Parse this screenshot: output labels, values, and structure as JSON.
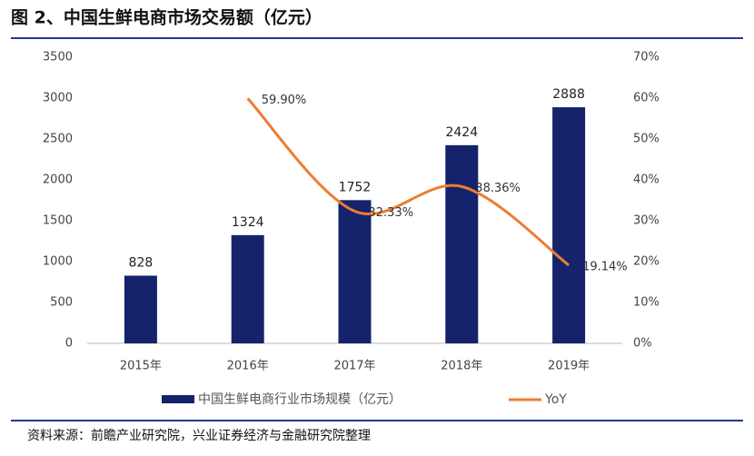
{
  "chart_data": {
    "type": "bar",
    "title": "图 2、中国生鲜电商市场交易额（亿元）",
    "source": "资料来源：前瞻产业研究院，兴业证券经济与金融研究院整理",
    "categories": [
      "2015年",
      "2016年",
      "2017年",
      "2018年",
      "2019年"
    ],
    "series": [
      {
        "name": "中国生鲜电商行业市场规模（亿元）",
        "type": "bar",
        "color": "#14236b",
        "values": [
          828,
          1324,
          1752,
          2424,
          2888
        ]
      },
      {
        "name": "YoY",
        "type": "line",
        "axis": "y2",
        "color": "#ed7d31",
        "values": [
          null,
          59.9,
          32.33,
          38.36,
          19.14
        ],
        "value_labels": [
          null,
          "59.90%",
          "32.33%",
          "38.36%",
          "19.14%"
        ]
      }
    ],
    "ylim": [
      0,
      3500
    ],
    "yticks": [
      0,
      500,
      1000,
      1500,
      2000,
      2500,
      3000,
      3500
    ],
    "y2lim": [
      0,
      70
    ],
    "y2ticks": [
      {
        "value": 0,
        "label": "0%"
      },
      {
        "value": 10,
        "label": "10%"
      },
      {
        "value": 20,
        "label": "20%"
      },
      {
        "value": 30,
        "label": "30%"
      },
      {
        "value": 40,
        "label": "40%"
      },
      {
        "value": 50,
        "label": "50%"
      },
      {
        "value": 60,
        "label": "60%"
      },
      {
        "value": 70,
        "label": "70%"
      }
    ],
    "grid": false
  }
}
